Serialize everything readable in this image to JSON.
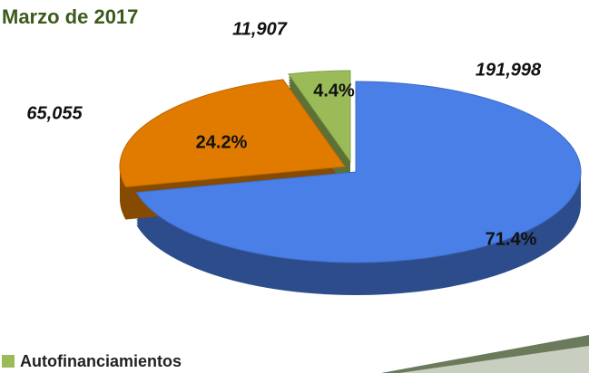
{
  "chart_data": {
    "type": "pie",
    "title": "Marzo de 2017",
    "categories": [
      null,
      null,
      "Autofinanciamientos"
    ],
    "values": [
      191998,
      65055,
      11907
    ],
    "value_labels": [
      "191,998",
      "65,055",
      "11,907"
    ],
    "percentage_labels": [
      "71.4%",
      "24.2%",
      "4.4%"
    ],
    "colors": [
      "#4a7fe8",
      "#e07b00",
      "#9bbb59"
    ]
  }
}
